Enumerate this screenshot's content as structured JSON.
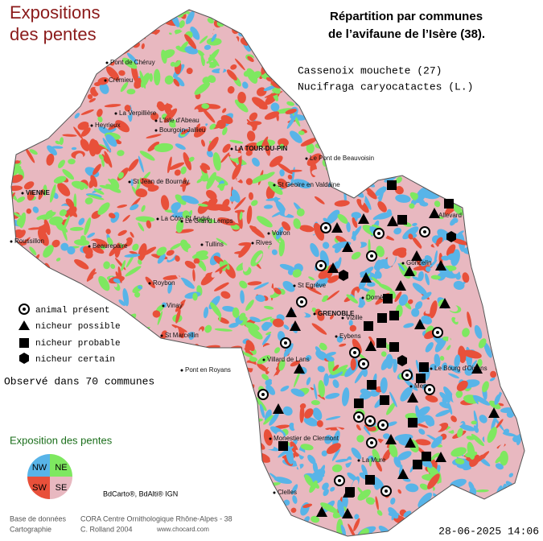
{
  "title_lines": [
    "Expositions",
    "des pentes"
  ],
  "header_lines": [
    "Répartition par communes",
    "de l’avifaune de l’Isère (38)."
  ],
  "species": {
    "common": "Cassenoix mouchete  (27)",
    "latin": "Nucifraga caryocatactes (L.)"
  },
  "legend": [
    "animal présent",
    "nicheur possible",
    "nicheur probable",
    "nicheur certain"
  ],
  "observed": "Observé dans 70 communes",
  "exposure": {
    "title": "Exposition des pentes",
    "quadrants": [
      "NW",
      "NE",
      "SW",
      "SE"
    ]
  },
  "source": "BdCarto®, BdAlti® IGN",
  "footer": {
    "labels": [
      "Base de données",
      "Cartographie"
    ],
    "values": [
      "CORA Centre Ornithologique Rhône-Alpes - 38",
      "C. Rolland 2004"
    ],
    "url": "www.chocard.com",
    "date": "28-06-2025 14:06"
  },
  "places": [
    "Pont de Chéruy",
    "Crémieu",
    "Heyrieux",
    "La Verpillière",
    "L'Isle d'Abeau",
    "Bourgoin-Jallieu",
    "VIENNE",
    "LA TOUR-DU-PIN",
    "Le Pont de Beauvoisin",
    "St Jean de Bournay",
    "Roussillon",
    "Beaurepaire",
    "La Côte St André",
    "Le Grand Lemps",
    "St Geoire en Valdaine",
    "Voiron",
    "Rives",
    "Tullins",
    "Roybon",
    "Vinay",
    "St Marcellin",
    "Pont en Royans",
    "GRENOBLE",
    "Vizille",
    "Le Bourg d'Oisans",
    "Monestier de Clermont",
    "Mens",
    "Clelles",
    "La Mure",
    "Villard de Lans",
    "Allevard",
    "Goncelin",
    "Domène",
    "St Egrève",
    "Eybens"
  ]
}
